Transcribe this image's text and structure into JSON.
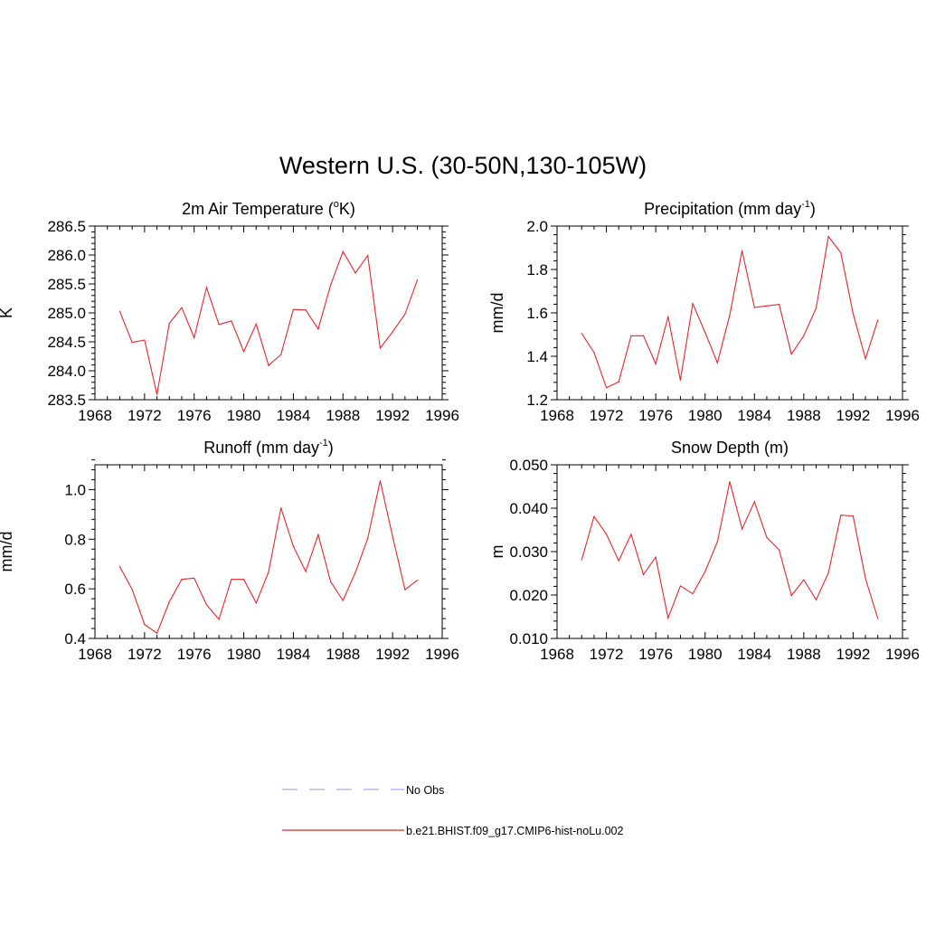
{
  "title": "Western U.S. (30-50N,130-105W)",
  "colors": {
    "model": "#e8242b",
    "obs": "#aaaaee",
    "axis": "#000000"
  },
  "legend": {
    "entries": [
      {
        "label": "No Obs",
        "style": "dashed",
        "color": "#aaaaee"
      },
      {
        "label": "b.e21.BHIST.f09_g17.CMIP6-hist-noLu.002",
        "style": "solid",
        "color": "#e8242b"
      }
    ]
  },
  "chart_data": [
    {
      "type": "line",
      "title": "2m Air Temperature (",
      "title_sup": "o",
      "title_suffix": "K)",
      "ylabel": "K",
      "xlim": [
        1968,
        1996
      ],
      "ylim": [
        283.5,
        286.5
      ],
      "xticks": [
        1968,
        1972,
        1976,
        1980,
        1984,
        1988,
        1992,
        1996
      ],
      "yticks": [
        "283.5",
        "284.0",
        "284.5",
        "285.0",
        "285.5",
        "286.0",
        "286.5"
      ],
      "x": [
        1970,
        1971,
        1972,
        1973,
        1974,
        1975,
        1976,
        1977,
        1978,
        1979,
        1980,
        1981,
        1982,
        1983,
        1984,
        1985,
        1986,
        1987,
        1988,
        1989,
        1990,
        1991,
        1992,
        1993,
        1994
      ],
      "series": [
        {
          "name": "b.e21.BHIST.f09_g17.CMIP6-hist-noLu.002",
          "values": [
            285.03,
            284.49,
            284.53,
            283.59,
            284.82,
            285.09,
            284.57,
            285.44,
            284.8,
            284.86,
            284.33,
            284.81,
            284.09,
            284.28,
            285.06,
            285.05,
            284.72,
            285.48,
            286.06,
            285.69,
            285.99,
            284.39,
            284.67,
            284.98,
            285.57
          ]
        }
      ]
    },
    {
      "type": "line",
      "title": "Precipitation (mm day",
      "title_sup": "-1",
      "title_suffix": ")",
      "ylabel": "mm/d",
      "xlim": [
        1968,
        1996
      ],
      "ylim": [
        1.2,
        2.0
      ],
      "xticks": [
        1968,
        1972,
        1976,
        1980,
        1984,
        1988,
        1992,
        1996
      ],
      "yticks": [
        "1.2",
        "1.4",
        "1.6",
        "1.8",
        "2.0"
      ],
      "x": [
        1970,
        1971,
        1972,
        1973,
        1974,
        1975,
        1976,
        1977,
        1978,
        1979,
        1980,
        1981,
        1982,
        1983,
        1984,
        1985,
        1986,
        1987,
        1988,
        1989,
        1990,
        1991,
        1992,
        1993,
        1994
      ],
      "series": [
        {
          "name": "b.e21.BHIST.f09_g17.CMIP6-hist-noLu.002",
          "values": [
            1.505,
            1.418,
            1.255,
            1.282,
            1.494,
            1.495,
            1.365,
            1.583,
            1.29,
            1.643,
            1.51,
            1.37,
            1.59,
            1.887,
            1.625,
            1.632,
            1.639,
            1.41,
            1.495,
            1.622,
            1.952,
            1.877,
            1.597,
            1.389,
            1.566
          ]
        }
      ]
    },
    {
      "type": "line",
      "title": "Runoff (mm day",
      "title_sup": "-1",
      "title_suffix": ")",
      "ylabel": "mm/d",
      "xlim": [
        1968,
        1996
      ],
      "ylim": [
        0.4,
        1.1
      ],
      "xticks": [
        1968,
        1972,
        1976,
        1980,
        1984,
        1988,
        1992,
        1996
      ],
      "yticks": [
        "0.4",
        "0.6",
        "0.8",
        "1.0"
      ],
      "x": [
        1970,
        1971,
        1972,
        1973,
        1974,
        1975,
        1976,
        1977,
        1978,
        1979,
        1980,
        1981,
        1982,
        1983,
        1984,
        1985,
        1986,
        1987,
        1988,
        1989,
        1990,
        1991,
        1992,
        1993,
        1994
      ],
      "series": [
        {
          "name": "b.e21.BHIST.f09_g17.CMIP6-hist-noLu.002",
          "values": [
            0.69,
            0.598,
            0.456,
            0.421,
            0.548,
            0.638,
            0.643,
            0.536,
            0.477,
            0.638,
            0.638,
            0.543,
            0.668,
            0.926,
            0.771,
            0.67,
            0.818,
            0.629,
            0.553,
            0.666,
            0.804,
            1.036,
            0.812,
            0.596,
            0.635
          ]
        }
      ]
    },
    {
      "type": "line",
      "title": "Snow Depth (m)",
      "title_sup": "",
      "title_suffix": "",
      "ylabel": "m",
      "xlim": [
        1968,
        1996
      ],
      "ylim": [
        0.01,
        0.05
      ],
      "xticks": [
        1968,
        1972,
        1976,
        1980,
        1984,
        1988,
        1992,
        1996
      ],
      "yticks": [
        "0.010",
        "0.020",
        "0.030",
        "0.040",
        "0.050"
      ],
      "x": [
        1970,
        1971,
        1972,
        1973,
        1974,
        1975,
        1976,
        1977,
        1978,
        1979,
        1980,
        1981,
        1982,
        1983,
        1984,
        1985,
        1986,
        1987,
        1988,
        1989,
        1990,
        1991,
        1992,
        1993,
        1994
      ],
      "series": [
        {
          "name": "b.e21.BHIST.f09_g17.CMIP6-hist-noLu.002",
          "values": [
            0.0281,
            0.0381,
            0.034,
            0.0279,
            0.034,
            0.0247,
            0.0287,
            0.0147,
            0.0221,
            0.0203,
            0.0254,
            0.0323,
            0.0461,
            0.0352,
            0.0415,
            0.0333,
            0.0304,
            0.0199,
            0.0235,
            0.0189,
            0.0251,
            0.0384,
            0.0382,
            0.0238,
            0.0146
          ]
        }
      ]
    }
  ]
}
